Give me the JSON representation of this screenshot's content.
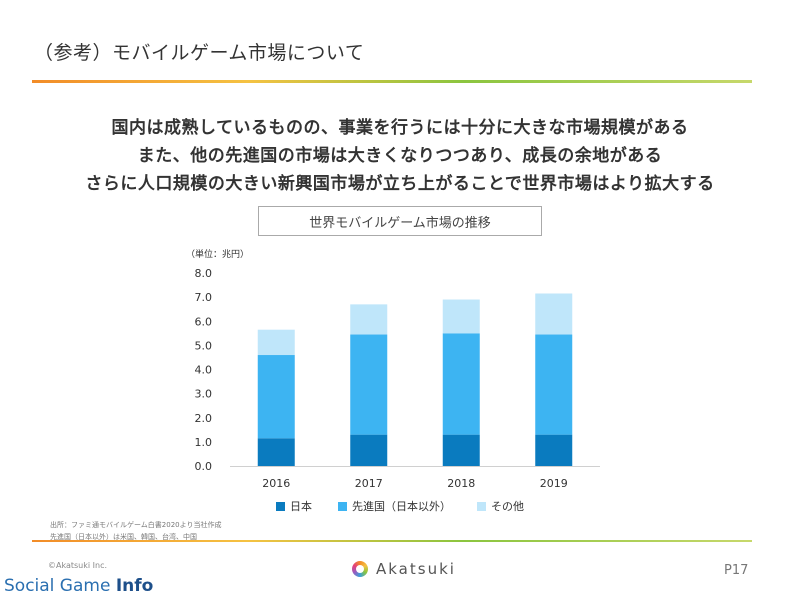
{
  "page": {
    "title": "（参考）モバイルゲーム市場について",
    "headlines": [
      "国内は成熟しているものの、事業を行うには十分に大きな市場規模がある",
      "また、他の先進国の市場は大きくなりつつあり、成長の余地がある",
      "さらに人口規模の大きい新興国市場が立ち上がることで世界市場はより拡大する"
    ],
    "notes": [
      "出所：ファミ通モバイルゲーム白書2020より当社作成",
      "先進国（日本以外）は米国、韓国、台湾、中国"
    ],
    "copyright": "©Akatsuki Inc.",
    "logo_text": "Akatsuki",
    "page_number": "P17",
    "watermark_main": "Social Game ",
    "watermark_bold": "Info"
  },
  "chart_data": {
    "type": "bar",
    "stacked": true,
    "title": "世界モバイルゲーム市場の推移",
    "unit_label": "（単位：兆円）",
    "categories": [
      "2016",
      "2017",
      "2018",
      "2019"
    ],
    "ylim": [
      0,
      8
    ],
    "yticks": [
      "0.0",
      "1.0",
      "2.0",
      "3.0",
      "4.0",
      "5.0",
      "6.0",
      "7.0",
      "8.0"
    ],
    "series": [
      {
        "name": "日本",
        "color": "#0a7bbf",
        "values": [
          1.15,
          1.3,
          1.3,
          1.3
        ]
      },
      {
        "name": "先進国（日本以外）",
        "color": "#3db4f2",
        "values": [
          3.45,
          4.15,
          4.2,
          4.15
        ]
      },
      {
        "name": "その他",
        "color": "#bfe6fa",
        "values": [
          1.05,
          1.25,
          1.4,
          1.7
        ]
      }
    ],
    "grid": false,
    "legend_position": "bottom"
  }
}
